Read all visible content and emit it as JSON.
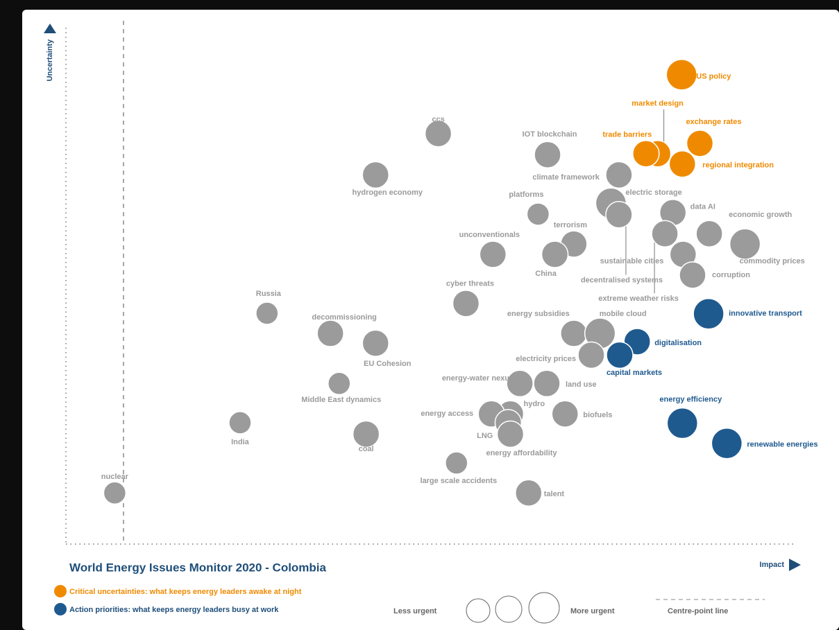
{
  "chart_data": {
    "type": "bubble",
    "title": "World Energy Issues Monitor 2020 - Colombia",
    "x_label": "Impact",
    "y_label": "Uncertainty",
    "xlim": [
      0,
      100
    ],
    "ylim": [
      0,
      100
    ],
    "centre_line": 7.9,
    "centre_line_label": "Centre-point line",
    "size_legend": {
      "less": "Less urgent",
      "more": "More urgent"
    },
    "series": [
      {
        "name": "Critical uncertainties: what keeps energy leaders awake at night",
        "color": "#ef8a00",
        "labels": [
          "US policy",
          "market design",
          "exchange rates",
          "trade barriers",
          "regional integration"
        ],
        "x": [
          84.5,
          81.2,
          87.0,
          79.6,
          84.6
        ],
        "y": [
          90.9,
          75.6,
          77.6,
          75.6,
          73.6
        ],
        "sizes": [
          3,
          2,
          2,
          2,
          2
        ]
      },
      {
        "name": "Action priorities: what keeps energy leaders busy at work",
        "color": "#1f5a8f",
        "labels": [
          "innovative transport",
          "digitalisation",
          "capital markets",
          "energy efficiency",
          "renewable energies"
        ],
        "x": [
          88.2,
          78.4,
          76.0,
          84.6,
          90.7
        ],
        "y": [
          44.6,
          39.2,
          36.6,
          23.4,
          19.5
        ],
        "sizes": [
          3,
          2,
          2,
          3,
          3
        ]
      },
      {
        "color": "#9b9b9b",
        "labels": [
          "ccs",
          "IOT blockchain",
          "hydrogen economy",
          "climate framework",
          "electric storage",
          "platforms",
          "decentralised systems",
          "data AI",
          "economic growth",
          "terrorism",
          "extreme weather risks",
          "China",
          "unconventionals",
          "commodity prices",
          "sustainable cities",
          "corruption",
          "cyber threats",
          "Russia",
          "decommissioning",
          "energy subsidies",
          "mobile cloud",
          "EU Cohesion",
          "electricity prices",
          "Middle East dynamics",
          "energy-water nexus",
          "land use",
          "hydro",
          "energy access",
          "biofuels",
          "LNG",
          "energy affordability",
          "India",
          "coal",
          "large scale accidents",
          "talent",
          "nuclear"
        ],
        "x": [
          51.1,
          66.1,
          42.5,
          75.9,
          74.8,
          64.8,
          75.9,
          83.3,
          88.3,
          69.7,
          82.2,
          67.1,
          58.6,
          93.2,
          84.7,
          86.0,
          54.9,
          27.6,
          36.3,
          69.7,
          73.3,
          42.5,
          72.1,
          37.5,
          62.3,
          66.0,
          61.0,
          58.4,
          68.5,
          60.7,
          61.0,
          23.9,
          41.2,
          53.6,
          63.5,
          6.7
        ],
        "y": [
          79.5,
          75.4,
          71.5,
          71.5,
          66.0,
          63.9,
          63.8,
          64.2,
          60.1,
          58.1,
          60.1,
          56.1,
          56.1,
          58.1,
          56.1,
          52.1,
          46.6,
          44.7,
          40.8,
          40.8,
          40.8,
          38.9,
          36.6,
          31.1,
          31.1,
          31.1,
          25.2,
          25.2,
          25.2,
          23.5,
          21.3,
          23.5,
          21.3,
          15.7,
          9.9,
          9.9
        ],
        "sizes": [
          2,
          2,
          2,
          2,
          3,
          1,
          2,
          2,
          2,
          2,
          2,
          2,
          2,
          3,
          2,
          2,
          2,
          1,
          2,
          2,
          3,
          2,
          2,
          1,
          2,
          2,
          2,
          2,
          2,
          2,
          2,
          1,
          2,
          1,
          2,
          1
        ]
      }
    ]
  }
}
